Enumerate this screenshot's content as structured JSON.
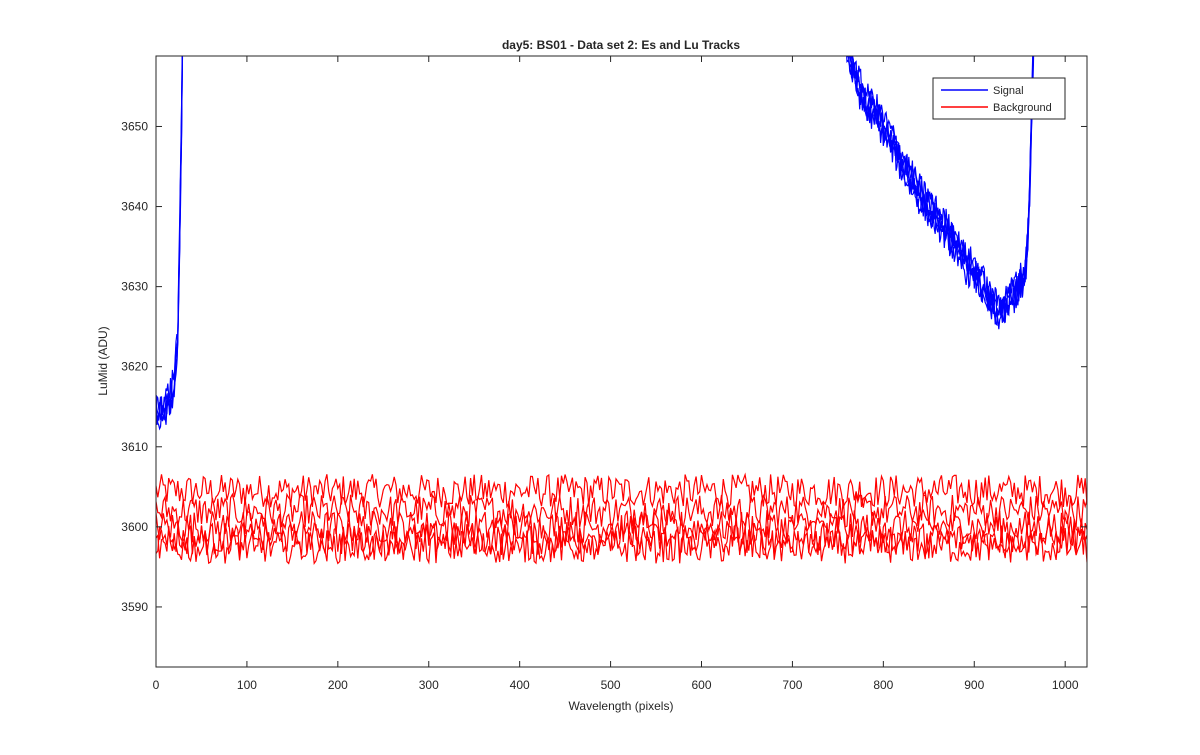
{
  "chart_data": {
    "type": "line",
    "title": "day5: BS01 - Data set 2: Es and Lu Tracks",
    "xlabel": "Wavelength (pixels)",
    "ylabel": "LuMid (ADU)",
    "xlim": [
      0,
      1024
    ],
    "ylim": [
      3582.5,
      3658.8
    ],
    "xticks": [
      0,
      100,
      200,
      300,
      400,
      500,
      600,
      700,
      800,
      900,
      1000
    ],
    "yticks": [
      3590,
      3600,
      3610,
      3620,
      3630,
      3640,
      3650
    ],
    "grid": false,
    "legend_position": "top-right",
    "colors": {
      "signal": "#0000ff",
      "background": "#ff0000",
      "axes": "#262626"
    },
    "legend": [
      {
        "label": "Signal",
        "color": "#0000ff"
      },
      {
        "label": "Background",
        "color": "#ff0000"
      }
    ],
    "series": [
      {
        "name": "Signal",
        "color": "#0000ff",
        "tracks": 5,
        "noise": 1.5,
        "segments": [
          {
            "x": [
              0,
              5,
              10,
              15,
              20,
              24,
              26,
              28,
              30
            ],
            "y": [
              3614,
              3614.5,
              3615,
              3616,
              3618,
              3624,
              3635,
              3650,
              3670
            ]
          },
          {
            "x": [
              755,
              760,
              770,
              780,
              790,
              800,
              810,
              820,
              830,
              840,
              850,
              860,
              870,
              880,
              890,
              900,
              910,
              918,
              925,
              932,
              940,
              948,
              955,
              958,
              961,
              964,
              967
            ],
            "y": [
              3670,
              3660,
              3656,
              3653,
              3652,
              3650,
              3648,
              3645.5,
              3643.5,
              3641.5,
              3640,
              3638.5,
              3637,
              3635,
              3633,
              3632,
              3630,
              3628,
              3627,
              3627.5,
              3628.5,
              3630,
              3631,
              3634,
              3642,
              3655,
              3670
            ]
          }
        ]
      },
      {
        "name": "Background",
        "color": "#ff0000",
        "x_range": [
          0,
          1024
        ],
        "track_means": [
          3604.5,
          3602,
          3600,
          3598.5,
          3597.5
        ],
        "noise": 1.3
      }
    ]
  }
}
